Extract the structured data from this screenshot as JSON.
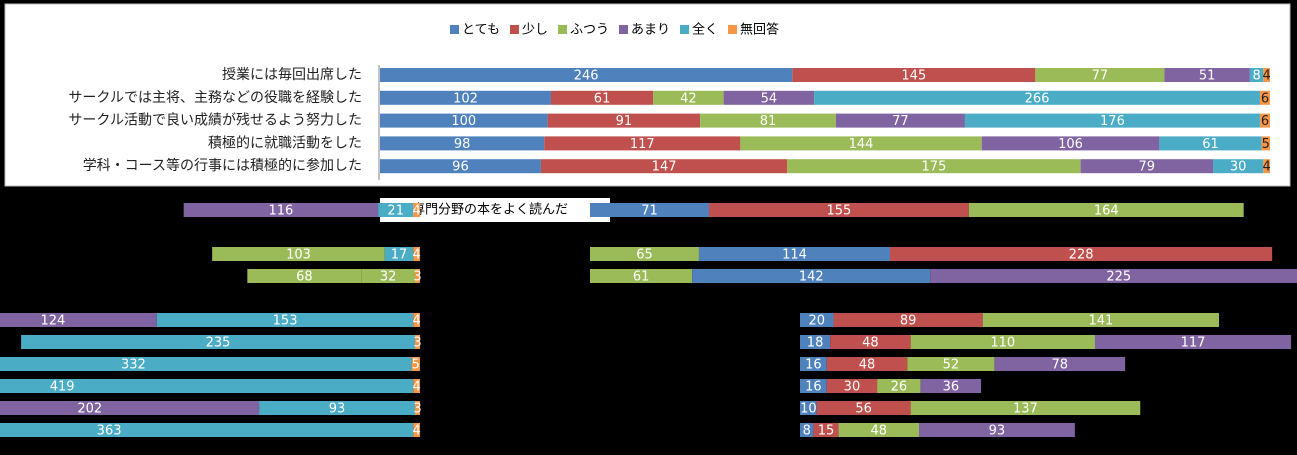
{
  "chart_data": {
    "type": "stacked-barh",
    "categories": [
      "授業には毎回出席した",
      "サークルでは主将、主務などの役職を経験した",
      "サークル活動で良い成績が残せるよう努力した",
      "積極的に就職活動をした",
      "学科・コース等の行事には積極的に参加した"
    ],
    "series": [
      {
        "name": "とても",
        "color": "#4f81bd",
        "values": [
          246,
          102,
          100,
          98,
          96
        ]
      },
      {
        "name": "少し",
        "color": "#c0504d",
        "values": [
          145,
          61,
          91,
          117,
          147
        ]
      },
      {
        "name": "ふつう",
        "color": "#9bbb59",
        "values": [
          77,
          42,
          81,
          144,
          175
        ]
      },
      {
        "name": "あまり",
        "color": "#8064a2",
        "values": [
          51,
          54,
          77,
          106,
          79
        ]
      },
      {
        "name": "全く",
        "color": "#4bacc6",
        "values": [
          8,
          266,
          176,
          61,
          30
        ]
      },
      {
        "name": "無回答",
        "color": "#f79646",
        "values": [
          4,
          6,
          6,
          5,
          4
        ]
      }
    ],
    "xlim": [
      0,
      531
    ],
    "legend": "top",
    "overlay_label": "専門分野の本をよく読んだ",
    "fragments": [
      {
        "anchor": "end",
        "rows": [
          {
            "values": [
              116,
              21,
              4
            ],
            "colors": [
              "#8064a2",
              "#4bacc6",
              "#f79646"
            ]
          },
          {
            "values": [],
            "colors": []
          },
          {
            "values": [
              103,
              17,
              4
            ],
            "colors": [
              "#9bbb59",
              "#4bacc6",
              "#f79646"
            ]
          },
          {
            "values": [
              68,
              32,
              3
            ],
            "colors": [
              "#9bbb59",
              "#9bbb59",
              "#f79646"
            ]
          },
          {
            "values": [],
            "colors": []
          },
          {
            "values": [
              124,
              153,
              4
            ],
            "colors": [
              "#8064a2",
              "#4bacc6",
              "#f79646"
            ]
          },
          {
            "values": [
              235,
              3
            ],
            "colors": [
              "#4bacc6",
              "#f79646"
            ]
          },
          {
            "values": [
              332,
              5
            ],
            "colors": [
              "#4bacc6",
              "#f79646"
            ]
          },
          {
            "values": [
              419,
              4
            ],
            "colors": [
              "#4bacc6",
              "#f79646"
            ]
          },
          {
            "values": [
              202,
              93,
              3
            ],
            "colors": [
              "#8064a2",
              "#4bacc6",
              "#f79646"
            ]
          },
          {
            "values": [
              363,
              4
            ],
            "colors": [
              "#4bacc6",
              "#f79646"
            ]
          }
        ]
      },
      {
        "anchor": "start",
        "rows": [
          {
            "values": [
              71,
              155,
              164
            ],
            "colors": [
              "#4f81bd",
              "#c0504d",
              "#9bbb59"
            ]
          },
          {
            "values": [],
            "colors": []
          },
          {
            "values": [
              65,
              114,
              228
            ],
            "colors": [
              "#9bbb59",
              "#4f81bd",
              "#c0504d"
            ]
          },
          {
            "values": [
              61,
              142,
              225
            ],
            "colors": [
              "#9bbb59",
              "#4f81bd",
              "#8064a2"
            ]
          }
        ]
      },
      {
        "anchor": "start",
        "rows": [
          {
            "values": [
              20,
              89,
              141
            ],
            "colors": [
              "#4f81bd",
              "#c0504d",
              "#9bbb59"
            ]
          },
          {
            "values": [
              18,
              48,
              110,
              117
            ],
            "colors": [
              "#4f81bd",
              "#c0504d",
              "#9bbb59",
              "#8064a2"
            ]
          },
          {
            "values": [
              16,
              48,
              52,
              78
            ],
            "colors": [
              "#4f81bd",
              "#c0504d",
              "#9bbb59",
              "#8064a2"
            ]
          },
          {
            "values": [
              16,
              30,
              26,
              36
            ],
            "colors": [
              "#4f81bd",
              "#c0504d",
              "#9bbb59",
              "#8064a2"
            ]
          },
          {
            "values": [
              10,
              56,
              137
            ],
            "colors": [
              "#4f81bd",
              "#c0504d",
              "#9bbb59"
            ]
          },
          {
            "values": [
              8,
              15,
              48,
              93
            ],
            "colors": [
              "#4f81bd",
              "#c0504d",
              "#9bbb59",
              "#8064a2"
            ]
          }
        ]
      }
    ]
  }
}
